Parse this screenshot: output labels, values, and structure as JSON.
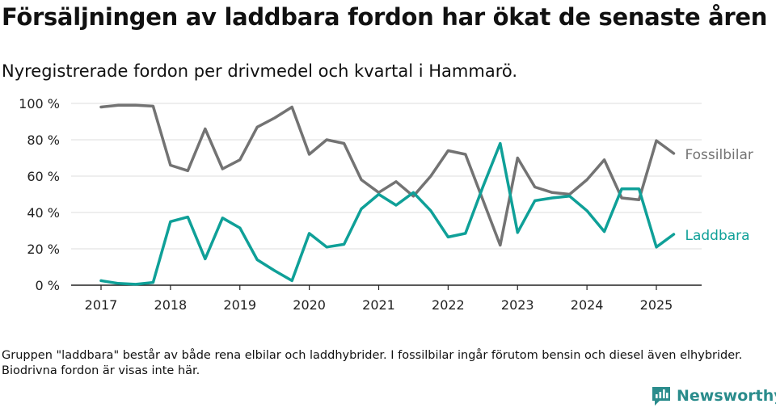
{
  "title": "Försäljningen av laddbara fordon har ökat de senaste åren",
  "subtitle": "Nyregistrerade fordon per drivmedel och kvartal i Hammarö.",
  "note": "Gruppen \"laddbara\" består av både rena elbilar och laddhybrider. I fossilbilar ingår förutom bensin och diesel även elhybrider. Biodrivna fordon är visas inte här.",
  "brand": "Newsworthy",
  "colors": {
    "fossil": "#737373",
    "laddbara": "#0fa098",
    "brand": "#2a8c8c"
  },
  "chart_data": {
    "type": "line",
    "ylim": [
      0,
      100
    ],
    "y_ticks": [
      0,
      20,
      40,
      60,
      80,
      100
    ],
    "y_tick_labels": [
      "0 %",
      "20 %",
      "40 %",
      "60 %",
      "80 %",
      "100 %"
    ],
    "xlim": [
      2017,
      2025.5
    ],
    "x_ticks": [
      2017,
      2018,
      2019,
      2020,
      2021,
      2022,
      2023,
      2024,
      2025
    ],
    "x_tick_labels": [
      "2017",
      "2018",
      "2019",
      "2020",
      "2021",
      "2022",
      "2023",
      "2024",
      "2025"
    ],
    "grid": "horizontal",
    "legend": "line-end labels",
    "x": [
      2017.0,
      2017.25,
      2017.5,
      2017.75,
      2018.0,
      2018.25,
      2018.5,
      2018.75,
      2019.0,
      2019.25,
      2019.5,
      2019.75,
      2020.0,
      2020.25,
      2020.5,
      2020.75,
      2021.0,
      2021.25,
      2021.5,
      2021.75,
      2022.0,
      2022.25,
      2022.5,
      2022.75,
      2023.0,
      2023.25,
      2023.5,
      2023.75,
      2024.0,
      2024.25,
      2024.5,
      2024.75,
      2025.0,
      2025.25
    ],
    "series": [
      {
        "name": "Fossilbilar",
        "color": "#737373",
        "values": [
          98,
          99,
          99,
          98.5,
          66,
          63,
          86,
          64,
          69,
          87,
          92,
          98,
          72,
          80,
          78,
          58,
          51,
          57,
          49,
          60,
          74,
          72,
          47,
          22,
          70,
          54,
          51,
          50,
          58,
          69,
          48,
          47,
          79.5,
          72.5
        ]
      },
      {
        "name": "Laddbara",
        "color": "#0fa098",
        "values": [
          2.5,
          1,
          0.5,
          1.5,
          35,
          37.5,
          14.5,
          37,
          31.5,
          14,
          8,
          2.5,
          28.5,
          21,
          22.5,
          42,
          50,
          44,
          51,
          41,
          26.5,
          28.5,
          54,
          78,
          29,
          46.5,
          48,
          49,
          41,
          29.5,
          53,
          53,
          21,
          28
        ]
      }
    ]
  }
}
